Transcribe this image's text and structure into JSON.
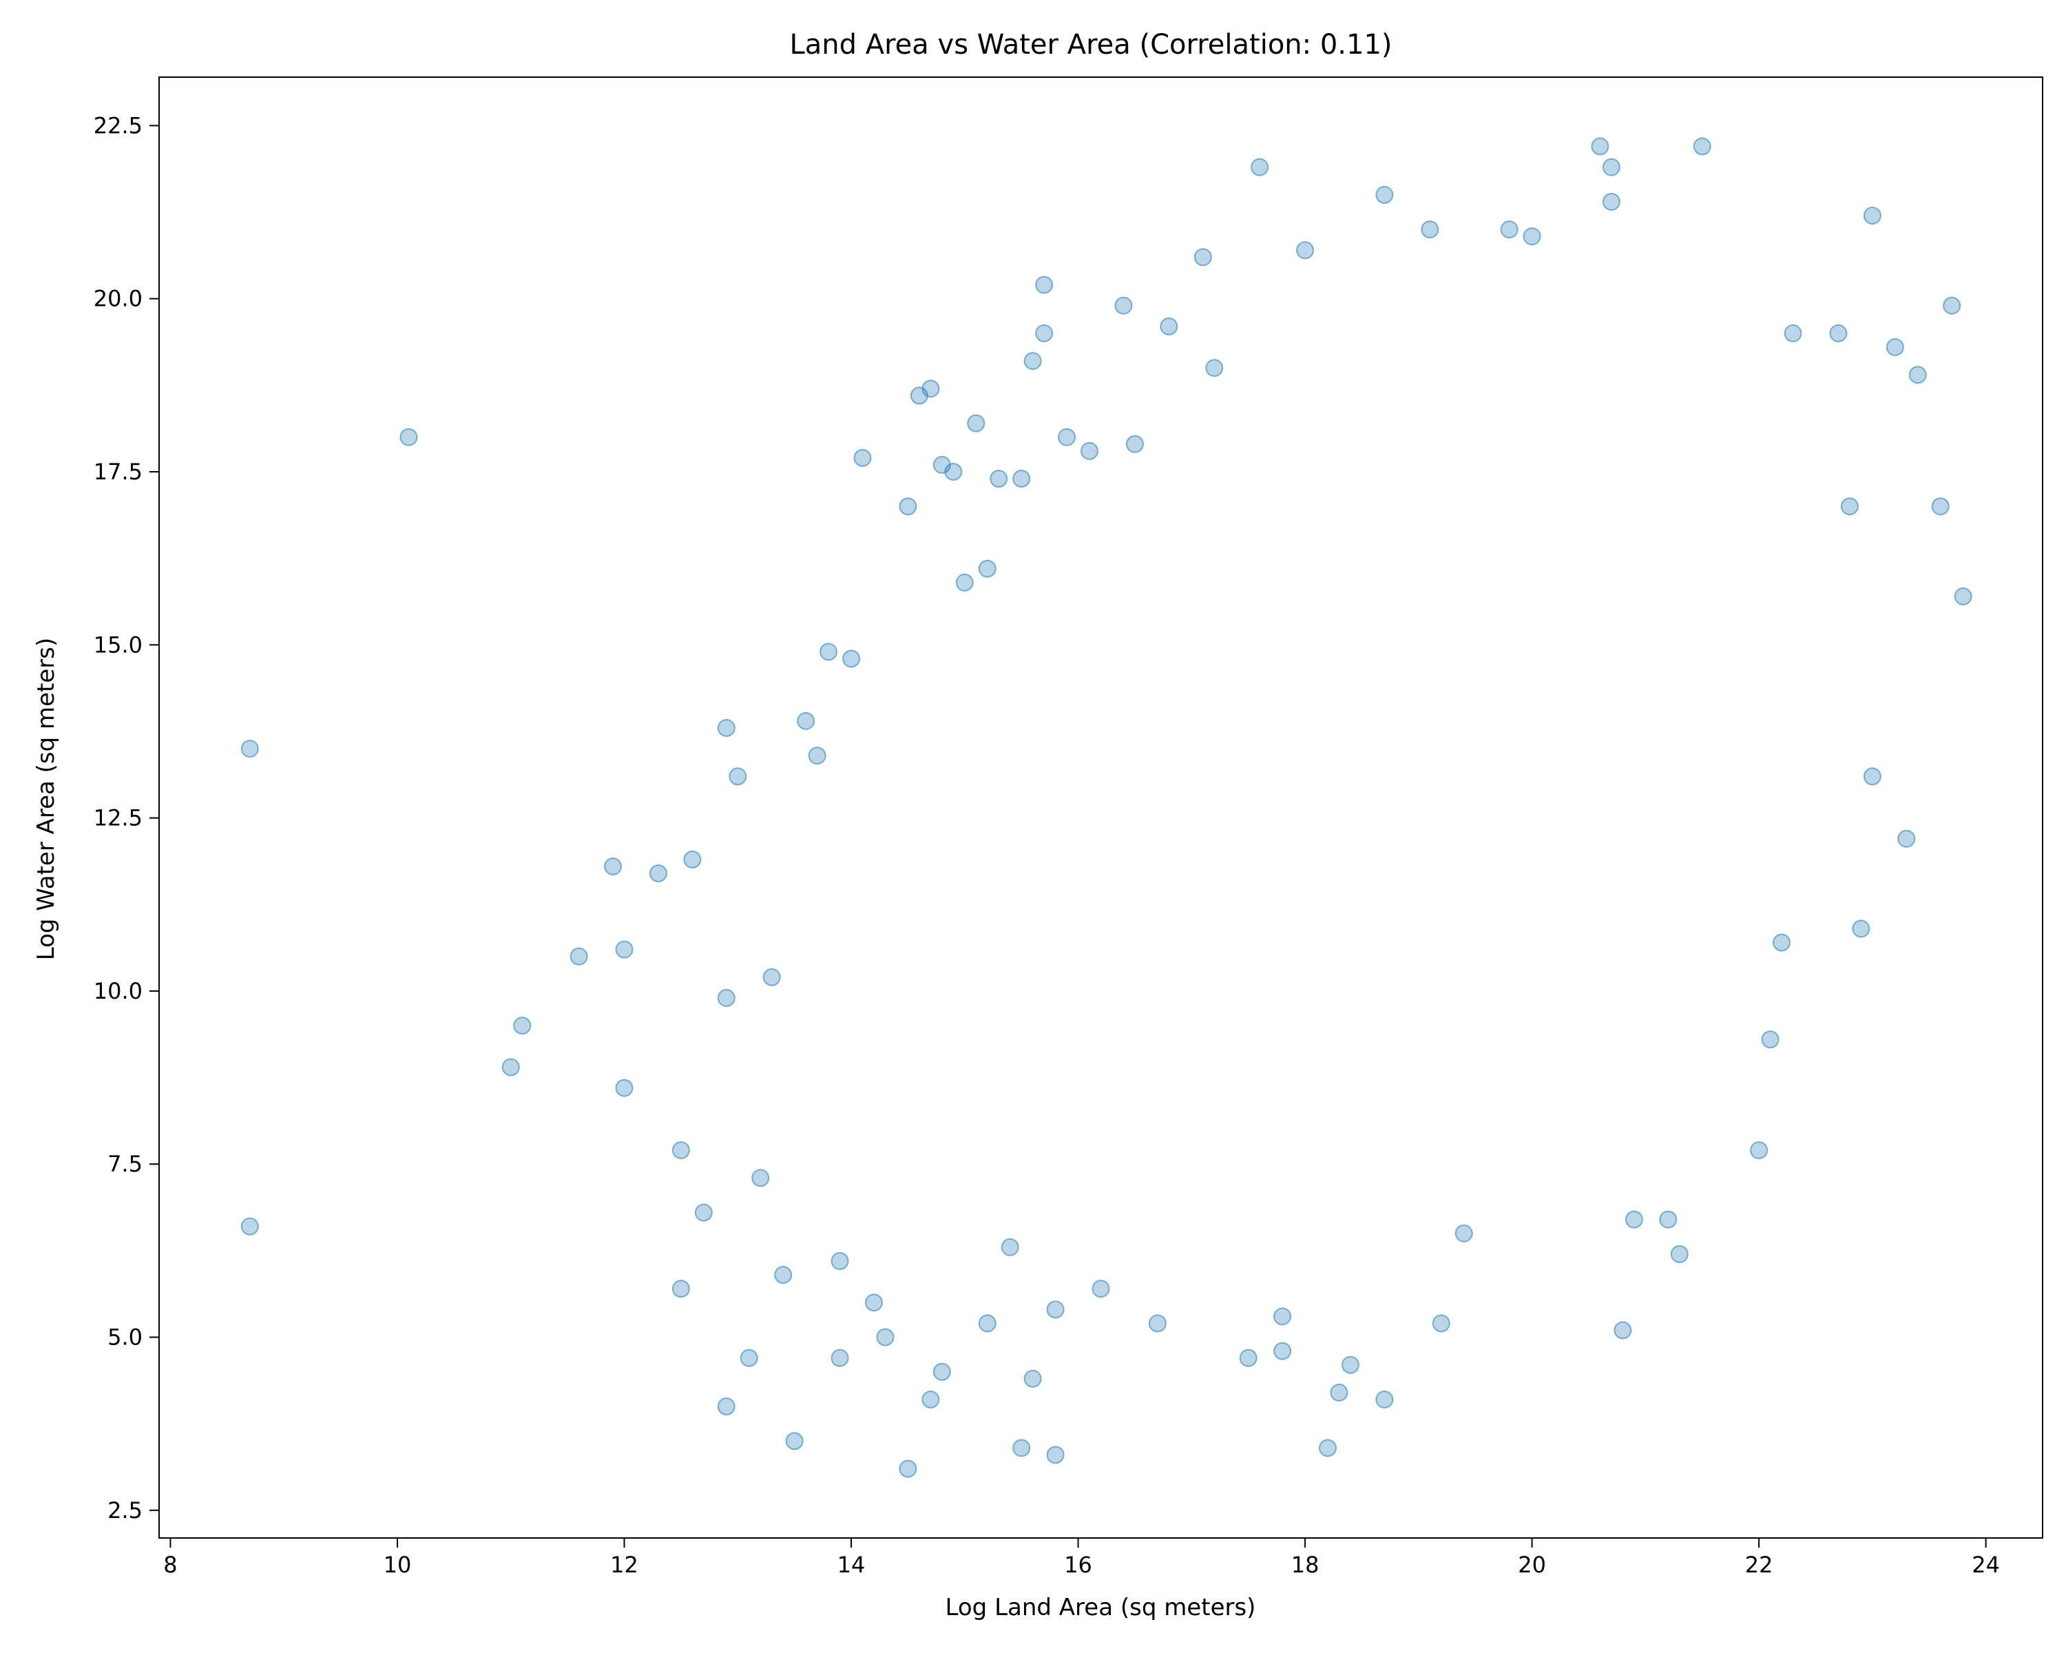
{
  "chart_data": {
    "type": "scatter",
    "title": "Land Area vs Water Area (Correlation: 0.11)",
    "xlabel": "Log Land Area (sq meters)",
    "ylabel": "Log Water Area (sq meters)",
    "xlim": [
      7.9,
      24.5
    ],
    "ylim": [
      2.1,
      23.2
    ],
    "xticks": [
      8,
      10,
      12,
      14,
      16,
      18,
      20,
      22,
      24
    ],
    "yticks": [
      2.5,
      5.0,
      7.5,
      10.0,
      12.5,
      15.0,
      17.5,
      20.0,
      22.5
    ],
    "xtick_labels": [
      "8",
      "10",
      "12",
      "14",
      "16",
      "18",
      "20",
      "22",
      "24"
    ],
    "ytick_labels": [
      "2.5",
      "5.0",
      "7.5",
      "10.0",
      "12.5",
      "15.0",
      "17.5",
      "20.0",
      "22.5"
    ],
    "grid": false,
    "color": "#1f77b4",
    "alpha": 0.3,
    "series": [
      {
        "points": [
          [
            8.7,
            13.5
          ],
          [
            8.7,
            6.6
          ],
          [
            10.1,
            18.0
          ],
          [
            11.0,
            8.9
          ],
          [
            11.1,
            9.5
          ],
          [
            11.6,
            10.5
          ],
          [
            11.9,
            11.8
          ],
          [
            12.0,
            8.6
          ],
          [
            12.0,
            10.6
          ],
          [
            12.3,
            11.7
          ],
          [
            12.5,
            7.7
          ],
          [
            12.5,
            5.7
          ],
          [
            12.6,
            11.9
          ],
          [
            12.7,
            6.8
          ],
          [
            12.9,
            13.8
          ],
          [
            12.9,
            9.9
          ],
          [
            12.9,
            4.0
          ],
          [
            13.0,
            13.1
          ],
          [
            13.1,
            4.7
          ],
          [
            13.2,
            7.3
          ],
          [
            13.3,
            10.2
          ],
          [
            13.4,
            5.9
          ],
          [
            13.5,
            3.5
          ],
          [
            13.6,
            13.9
          ],
          [
            13.7,
            13.4
          ],
          [
            13.8,
            14.9
          ],
          [
            13.9,
            4.7
          ],
          [
            13.9,
            6.1
          ],
          [
            14.0,
            14.8
          ],
          [
            14.1,
            17.7
          ],
          [
            14.2,
            5.5
          ],
          [
            14.3,
            5.0
          ],
          [
            14.5,
            3.1
          ],
          [
            14.5,
            17.0
          ],
          [
            14.6,
            18.6
          ],
          [
            14.7,
            18.7
          ],
          [
            14.7,
            4.1
          ],
          [
            14.8,
            4.5
          ],
          [
            14.8,
            17.6
          ],
          [
            14.9,
            17.5
          ],
          [
            15.0,
            15.9
          ],
          [
            15.1,
            18.2
          ],
          [
            15.2,
            5.2
          ],
          [
            15.2,
            16.1
          ],
          [
            15.3,
            17.4
          ],
          [
            15.4,
            6.3
          ],
          [
            15.5,
            17.4
          ],
          [
            15.5,
            3.4
          ],
          [
            15.6,
            4.4
          ],
          [
            15.6,
            19.1
          ],
          [
            15.7,
            19.5
          ],
          [
            15.7,
            20.2
          ],
          [
            15.8,
            3.3
          ],
          [
            15.8,
            5.4
          ],
          [
            15.9,
            18.0
          ],
          [
            16.1,
            17.8
          ],
          [
            16.2,
            5.7
          ],
          [
            16.4,
            19.9
          ],
          [
            16.5,
            17.9
          ],
          [
            16.7,
            5.2
          ],
          [
            16.8,
            19.6
          ],
          [
            17.1,
            20.6
          ],
          [
            17.2,
            19.0
          ],
          [
            17.5,
            4.7
          ],
          [
            17.6,
            21.9
          ],
          [
            17.8,
            4.8
          ],
          [
            17.8,
            5.3
          ],
          [
            18.0,
            20.7
          ],
          [
            18.2,
            3.4
          ],
          [
            18.3,
            4.2
          ],
          [
            18.4,
            4.6
          ],
          [
            18.7,
            4.1
          ],
          [
            18.7,
            21.5
          ],
          [
            19.1,
            21.0
          ],
          [
            19.2,
            5.2
          ],
          [
            19.4,
            6.5
          ],
          [
            19.8,
            21.0
          ],
          [
            20.0,
            20.9
          ],
          [
            20.6,
            22.2
          ],
          [
            20.7,
            21.9
          ],
          [
            20.7,
            21.4
          ],
          [
            20.8,
            5.1
          ],
          [
            20.9,
            6.7
          ],
          [
            21.2,
            6.7
          ],
          [
            21.3,
            6.2
          ],
          [
            21.5,
            22.2
          ],
          [
            22.0,
            7.7
          ],
          [
            22.1,
            9.3
          ],
          [
            22.2,
            10.7
          ],
          [
            22.3,
            19.5
          ],
          [
            22.7,
            19.5
          ],
          [
            22.8,
            17.0
          ],
          [
            22.9,
            10.9
          ],
          [
            23.0,
            21.2
          ],
          [
            23.0,
            13.1
          ],
          [
            23.2,
            19.3
          ],
          [
            23.3,
            12.2
          ],
          [
            23.4,
            18.9
          ],
          [
            23.6,
            17.0
          ],
          [
            23.7,
            19.9
          ],
          [
            23.8,
            15.7
          ]
        ]
      }
    ]
  }
}
